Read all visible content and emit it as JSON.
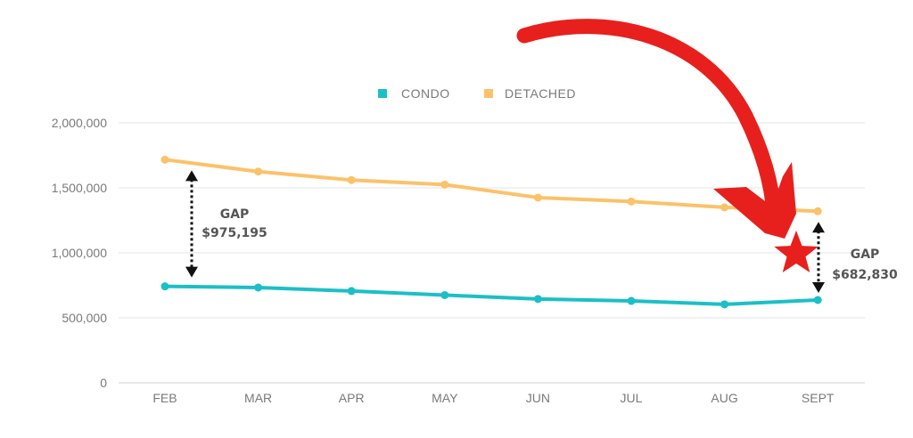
{
  "chart_data": {
    "type": "line",
    "categories": [
      "FEB",
      "MAR",
      "APR",
      "MAY",
      "JUN",
      "JUL",
      "AUG",
      "SEPT"
    ],
    "series": [
      {
        "name": "CONDO",
        "color": "#1cbfc7",
        "values": [
          742000,
          733000,
          706000,
          675000,
          645000,
          630000,
          604000,
          637000
        ]
      },
      {
        "name": "DETACHED",
        "color": "#fbc26a",
        "values": [
          1717000,
          1625000,
          1560000,
          1525000,
          1425000,
          1395000,
          1350000,
          1320000
        ]
      }
    ],
    "ylim": [
      0,
      2000000
    ],
    "yticks": [
      "0",
      "500,000",
      "1,000,000",
      "1,500,000",
      "2,000,000"
    ],
    "yticks_values": [
      0,
      500000,
      1000000,
      1500000,
      2000000
    ],
    "grid": true,
    "legend_position": "top-center",
    "annotations": [
      {
        "category": "FEB",
        "label": "GAP",
        "value": "$975,195"
      },
      {
        "category": "SEPT",
        "label": "GAP",
        "value": "$682,830"
      }
    ],
    "highlight": {
      "shape": "star",
      "color": "#e8201d",
      "category": "SEPT",
      "arrow": "red-curved"
    }
  }
}
